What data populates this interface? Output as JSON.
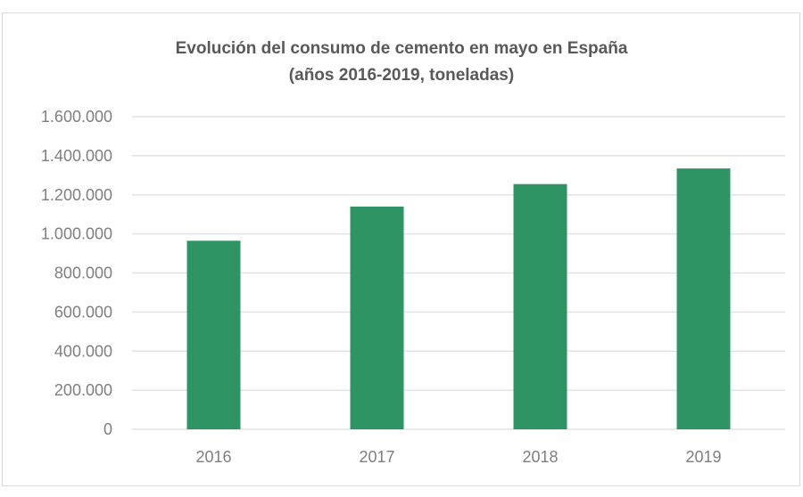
{
  "chart_data": {
    "type": "bar",
    "title": "Evolución del consumo de cemento en mayo en España",
    "subtitle": "(años 2016-2019, toneladas)",
    "xlabel": "",
    "ylabel": "",
    "categories": [
      "2016",
      "2017",
      "2018",
      "2019"
    ],
    "values": [
      965000,
      1140000,
      1255000,
      1335000
    ],
    "ylim": [
      0,
      1600000
    ],
    "yticks": [
      0,
      200000,
      400000,
      600000,
      800000,
      1000000,
      1200000,
      1400000,
      1600000
    ],
    "ytick_labels": [
      "0",
      "200.000",
      "400.000",
      "600.000",
      "800.000",
      "1.000.000",
      "1.200.000",
      "1.400.000",
      "1.600.000"
    ],
    "grid": true,
    "legend": "none",
    "bar_color": "#2e9464",
    "grid_color": "#e3e3e3"
  }
}
